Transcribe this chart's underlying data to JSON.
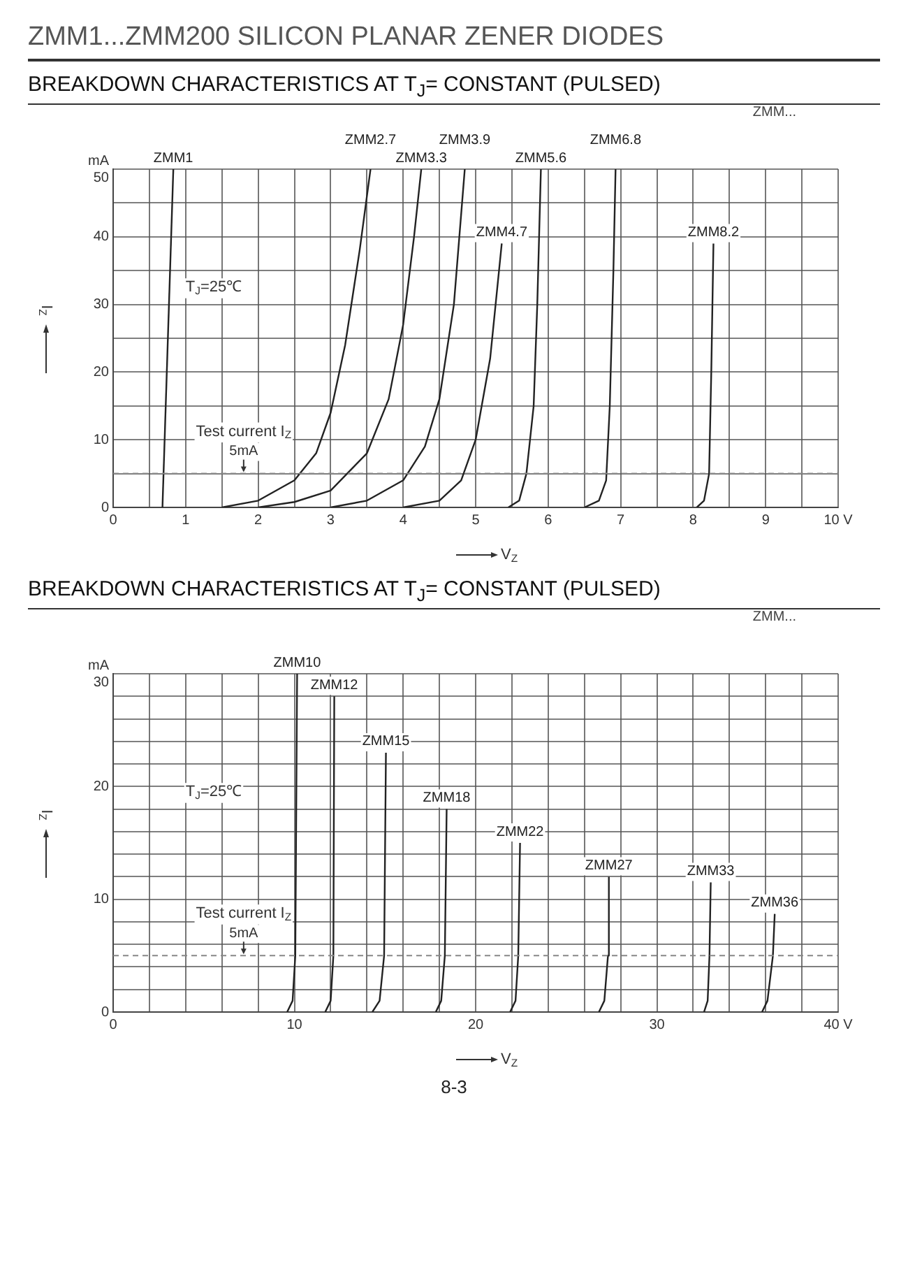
{
  "chart_data": [
    {
      "type": "line",
      "title": "ZMM1...ZMM200 SILICON PLANAR ZENER DIODES",
      "subtitle": "BREAKDOWN CHARACTERISTICS AT T$_{J}$= CONSTANT (PULSED)",
      "xlabel": "V$_{Z}$",
      "ylabel": "I$_{Z}$",
      "annotations": [
        "ZMM...",
        "T$_{J}$=25℃",
        "Test current I$_{Z}$"
      ],
      "xlim": [
        0,
        10
      ],
      "ylim": [
        0,
        50
      ],
      "xticks": [
        0,
        {
          "value": 0.5,
          "label": null
        },
        1,
        {
          "value": 1.5,
          "label": null
        },
        2,
        {
          "value": 2.5,
          "label": null
        },
        3,
        {
          "value": 3.5,
          "label": null
        },
        4,
        {
          "value": 4.5,
          "label": null
        },
        5,
        {
          "value": 5.5,
          "label": null
        },
        6,
        {
          "value": 6.5,
          "label": null
        },
        7,
        {
          "value": 7.5,
          "label": null
        },
        8,
        {
          "value": 8.5,
          "label": null
        },
        9,
        {
          "value": 9.5,
          "label": null
        },
        {
          "value": 10,
          "label": "10 V"
        }
      ],
      "yticks": [
        0,
        {
          "value": 5,
          "label": null
        },
        10,
        {
          "value": 15,
          "label": null
        },
        20,
        {
          "value": 25,
          "label": null
        },
        30,
        {
          "value": 35,
          "label": null
        },
        40,
        {
          "value": 45,
          "label": null
        },
        {
          "value": 50,
          "label": "mA\n50"
        }
      ],
      "grid": true,
      "marker": "none",
      "line_style": "solid",
      "ref_lines": [
        {
          "axis": "y",
          "value": 5,
          "label": "5mA",
          "color": "#888888",
          "line_style": "dashed"
        }
      ],
      "series": [
        {
          "name": "ZMM1",
          "color": "#222222",
          "x": [
            0.68,
            0.83
          ],
          "values": [
            0,
            50
          ]
        },
        {
          "name": "ZMM2.7",
          "color": "#222222",
          "x": [
            1.5,
            2.0,
            2.5,
            2.8,
            3.0,
            3.2,
            3.4,
            3.55
          ],
          "values": [
            0,
            1,
            4,
            8,
            14,
            24,
            38,
            50
          ]
        },
        {
          "name": "ZMM3.3",
          "color": "#222222",
          "x": [
            2.0,
            2.5,
            3.0,
            3.5,
            3.8,
            4.0,
            4.15,
            4.25
          ],
          "values": [
            0,
            0.8,
            2.5,
            8,
            16,
            27,
            40,
            50
          ]
        },
        {
          "name": "ZMM3.9",
          "color": "#222222",
          "x": [
            3.0,
            3.5,
            4.0,
            4.3,
            4.5,
            4.7,
            4.85
          ],
          "values": [
            0,
            1,
            4,
            9,
            16,
            30,
            50
          ]
        },
        {
          "name": "ZMM4.7",
          "color": "#222222",
          "x": [
            4.0,
            4.5,
            4.8,
            5.0,
            5.2,
            5.36
          ],
          "values": [
            0,
            1,
            4,
            10,
            22,
            39
          ]
        },
        {
          "name": "ZMM5.6",
          "color": "#222222",
          "x": [
            5.45,
            5.6,
            5.7,
            5.8,
            5.85,
            5.9
          ],
          "values": [
            0,
            1,
            5,
            15,
            30,
            50
          ]
        },
        {
          "name": "ZMM6.8",
          "color": "#222222",
          "x": [
            6.5,
            6.7,
            6.8,
            6.85,
            6.9,
            6.93
          ],
          "values": [
            0,
            1,
            4,
            15,
            35,
            50
          ]
        },
        {
          "name": "ZMM8.2",
          "color": "#222222",
          "x": [
            8.05,
            8.15,
            8.22,
            8.25,
            8.28
          ],
          "values": [
            0,
            1,
            5,
            20,
            39
          ]
        }
      ]
    },
    {
      "type": "line",
      "title": "BREAKDOWN CHARACTERISTICS AT T$_{J}$= CONSTANT (PULSED)",
      "xlabel": "V$_{Z}$",
      "ylabel": "I$_{Z}$",
      "annotations": [
        "ZMM...",
        "T$_{J}$=25℃",
        "Test current I$_{Z}$",
        "8-3"
      ],
      "xlim": [
        0,
        40
      ],
      "ylim": [
        0,
        30
      ],
      "xticks": [
        0,
        {
          "value": 2,
          "label": null
        },
        {
          "value": 4,
          "label": null
        },
        {
          "value": 6,
          "label": null
        },
        {
          "value": 8,
          "label": null
        },
        10,
        {
          "value": 12,
          "label": null
        },
        {
          "value": 14,
          "label": null
        },
        {
          "value": 16,
          "label": null
        },
        {
          "value": 18,
          "label": null
        },
        20,
        {
          "value": 22,
          "label": null
        },
        {
          "value": 24,
          "label": null
        },
        {
          "value": 26,
          "label": null
        },
        {
          "value": 28,
          "label": null
        },
        30,
        {
          "value": 32,
          "label": null
        },
        {
          "value": 34,
          "label": null
        },
        {
          "value": 36,
          "label": null
        },
        {
          "value": 38,
          "label": null
        },
        {
          "value": 40,
          "label": "40 V"
        }
      ],
      "yticks": [
        0,
        {
          "value": 2,
          "label": null
        },
        {
          "value": 4,
          "label": null
        },
        {
          "value": 6,
          "label": null
        },
        {
          "value": 8,
          "label": null
        },
        10,
        {
          "value": 12,
          "label": null
        },
        {
          "value": 14,
          "label": null
        },
        {
          "value": 16,
          "label": null
        },
        {
          "value": 18,
          "label": null
        },
        20,
        {
          "value": 22,
          "label": null
        },
        {
          "value": 24,
          "label": null
        },
        {
          "value": 26,
          "label": null
        },
        {
          "value": 28,
          "label": null
        },
        {
          "value": 30,
          "label": "mA\n30"
        }
      ],
      "grid": true,
      "marker": "none",
      "line_style": "solid",
      "ref_lines": [
        {
          "axis": "y",
          "value": 5,
          "label": "5mA",
          "color": "#888888",
          "line_style": "dashed"
        }
      ],
      "series": [
        {
          "name": "ZMM10",
          "color": "#222222",
          "x": [
            9.6,
            9.9,
            10.05,
            10.15
          ],
          "values": [
            0,
            1,
            5,
            30
          ]
        },
        {
          "name": "ZMM12",
          "color": "#222222",
          "x": [
            11.7,
            12.0,
            12.15,
            12.2
          ],
          "values": [
            0,
            1,
            5,
            28
          ]
        },
        {
          "name": "ZMM15",
          "color": "#222222",
          "x": [
            14.3,
            14.7,
            14.95,
            15.05
          ],
          "values": [
            0,
            1,
            5,
            23
          ]
        },
        {
          "name": "ZMM18",
          "color": "#222222",
          "x": [
            17.8,
            18.1,
            18.3,
            18.4
          ],
          "values": [
            0,
            1,
            5,
            18
          ]
        },
        {
          "name": "ZMM22",
          "color": "#222222",
          "x": [
            21.9,
            22.2,
            22.35,
            22.45
          ],
          "values": [
            0,
            1,
            5,
            15
          ]
        },
        {
          "name": "ZMM27",
          "color": "#222222",
          "x": [
            26.8,
            27.1,
            27.3,
            27.35
          ],
          "values": [
            0,
            1,
            5,
            12
          ]
        },
        {
          "name": "ZMM33",
          "color": "#222222",
          "x": [
            32.6,
            32.8,
            32.9,
            32.97
          ],
          "values": [
            0,
            1,
            5,
            11.5
          ]
        },
        {
          "name": "ZMM36",
          "color": "#222222",
          "x": [
            35.8,
            36.1,
            36.4,
            36.5
          ],
          "values": [
            0,
            1,
            5,
            8.7
          ]
        }
      ]
    }
  ]
}
